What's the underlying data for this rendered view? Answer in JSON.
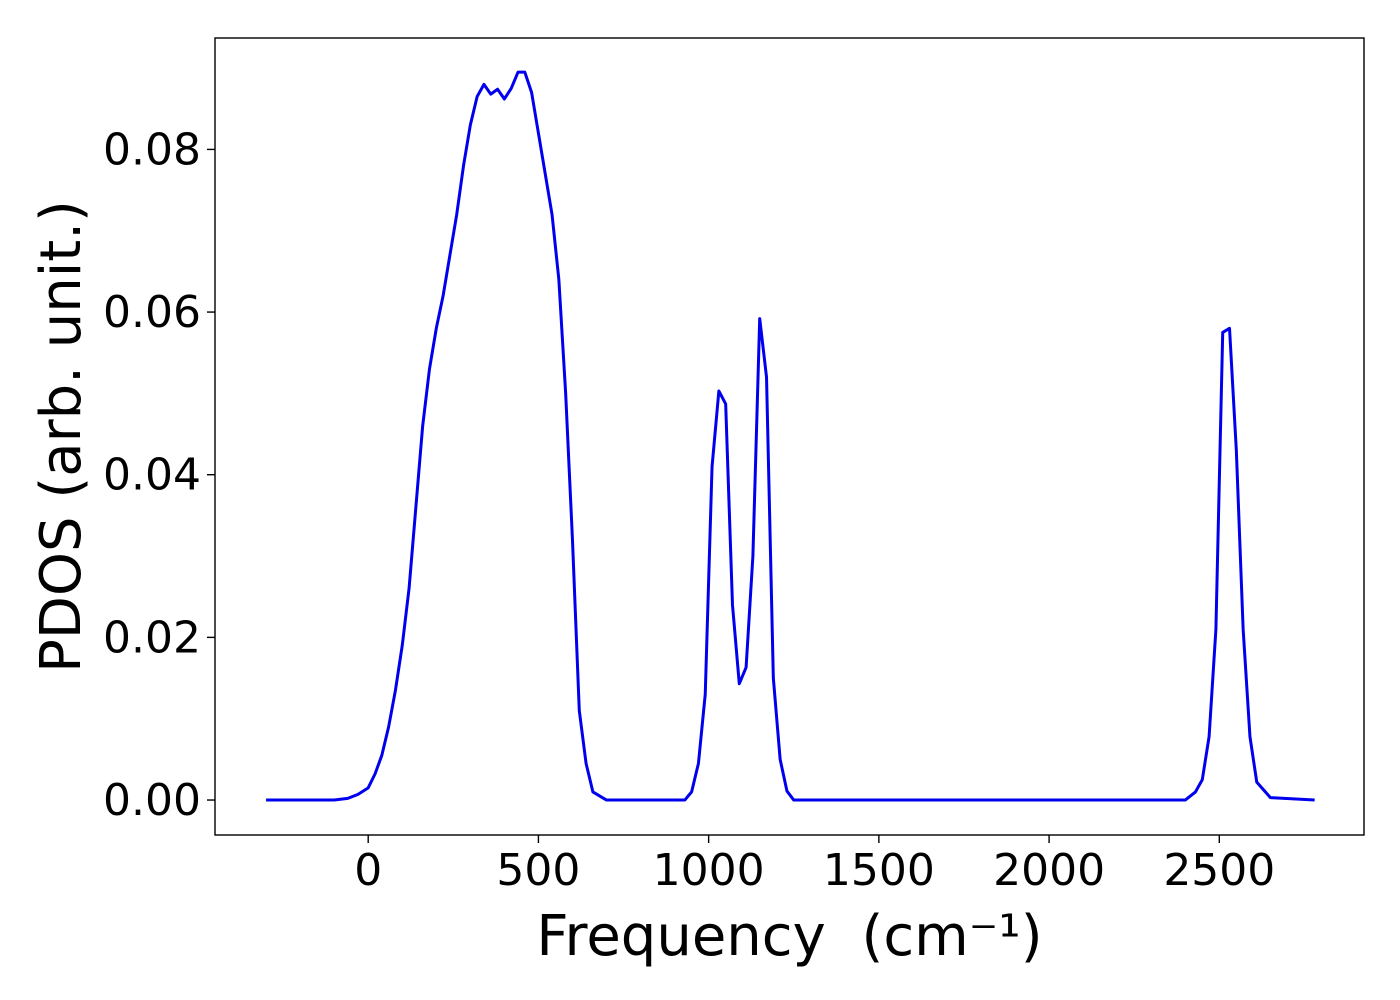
{
  "chart_data": {
    "type": "line",
    "title": "",
    "xlabel": "Frequency",
    "xlabel_unit": "(cm⁻¹)",
    "ylabel": "PDOS (arb. unit.)",
    "xlim": [
      -450,
      2925
    ],
    "ylim": [
      -0.0043,
      0.0937
    ],
    "xticks": [
      0,
      500,
      1000,
      1500,
      2000,
      2500
    ],
    "yticks": [
      0.0,
      0.02,
      0.04,
      0.06,
      0.08
    ],
    "ytick_labels": [
      "0.00",
      "0.02",
      "0.04",
      "0.06",
      "0.08"
    ],
    "xtick_labels": [
      "0",
      "500",
      "1000",
      "1500",
      "2000",
      "2500"
    ],
    "grid": false,
    "series": [
      {
        "color": "#0000ee",
        "x": [
          -300,
          -100,
          -60,
          -30,
          0,
          20,
          40,
          60,
          80,
          100,
          120,
          140,
          160,
          180,
          200,
          220,
          240,
          260,
          280,
          300,
          320,
          340,
          360,
          380,
          400,
          420,
          440,
          460,
          480,
          500,
          520,
          540,
          560,
          580,
          600,
          620,
          640,
          660,
          700,
          800,
          930,
          950,
          970,
          990,
          1010,
          1030,
          1050,
          1070,
          1090,
          1110,
          1130,
          1150,
          1170,
          1190,
          1210,
          1230,
          1250,
          1280,
          1500,
          2000,
          2400,
          2430,
          2450,
          2470,
          2490,
          2510,
          2530,
          2550,
          2570,
          2590,
          2610,
          2650,
          2780
        ],
        "y": [
          0.0,
          0.0,
          0.0002,
          0.0007,
          0.0015,
          0.0032,
          0.0055,
          0.009,
          0.0135,
          0.019,
          0.026,
          0.036,
          0.046,
          0.053,
          0.058,
          0.062,
          0.067,
          0.072,
          0.078,
          0.083,
          0.0865,
          0.088,
          0.0868,
          0.0874,
          0.0862,
          0.0875,
          0.0895,
          0.0895,
          0.087,
          0.082,
          0.077,
          0.072,
          0.064,
          0.05,
          0.032,
          0.011,
          0.0045,
          0.001,
          0.0,
          0.0,
          0.0,
          0.001,
          0.0045,
          0.013,
          0.041,
          0.0503,
          0.0487,
          0.024,
          0.0143,
          0.0163,
          0.03,
          0.0592,
          0.052,
          0.015,
          0.005,
          0.0011,
          0.0,
          0.0,
          0.0,
          0.0,
          0.0,
          0.001,
          0.0025,
          0.0078,
          0.021,
          0.0575,
          0.058,
          0.043,
          0.021,
          0.0078,
          0.0022,
          0.0003,
          0.0
        ]
      }
    ]
  }
}
